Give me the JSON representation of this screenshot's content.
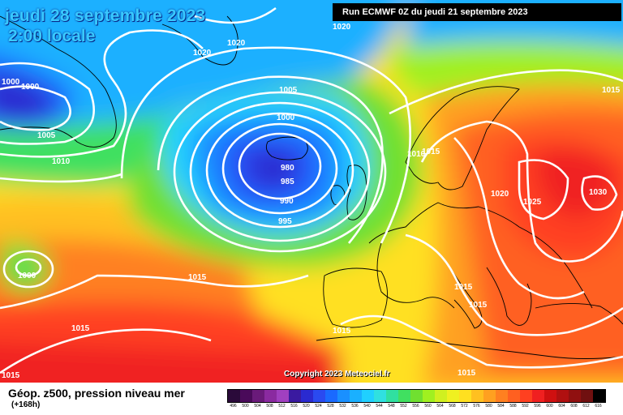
{
  "header": {
    "date_line": "jeudi 28 septembre 2023",
    "time_line": "2:00 locale",
    "run_info": "Run ECMWF 0Z du jeudi 21 septembre 2023"
  },
  "map": {
    "copyright": "Copyright 2023 Meteociel.fr",
    "pressure_labels": [
      "1020",
      "1020",
      "1020",
      "1000",
      "1000",
      "1005",
      "1010",
      "1005",
      "1000",
      "980",
      "985",
      "990",
      "995",
      "1010",
      "1015",
      "1015",
      "1020",
      "1025",
      "1030",
      "1000",
      "1015",
      "1015",
      "1015",
      "1015",
      "1015",
      "1015",
      "1015"
    ],
    "colors": {
      "isobar": "#ffffff",
      "coast": "#000000"
    }
  },
  "legend": {
    "title": "Géop. z500, pression niveau mer",
    "subtitle": "(+168h)",
    "scale_values": [
      "496",
      "500",
      "504",
      "508",
      "512",
      "516",
      "520",
      "524",
      "528",
      "532",
      "536",
      "540",
      "544",
      "548",
      "552",
      "556",
      "560",
      "564",
      "568",
      "572",
      "576",
      "580",
      "584",
      "588",
      "592",
      "596",
      "600",
      "604",
      "608",
      "612",
      "616"
    ],
    "scale_colors": [
      "#2a0a3a",
      "#4a0a5a",
      "#6a1a7a",
      "#8a2aa0",
      "#a040c0",
      "#3a1aa0",
      "#2a2ad0",
      "#2a4af0",
      "#1a6aff",
      "#1a90ff",
      "#1ab0ff",
      "#20d0ff",
      "#30e0e0",
      "#30e0a0",
      "#40e060",
      "#70e030",
      "#a0f020",
      "#d0f020",
      "#f0f020",
      "#ffe020",
      "#ffc020",
      "#ffa020",
      "#ff8020",
      "#ff6020",
      "#ff4020",
      "#f02020",
      "#d01010",
      "#b01010",
      "#901010",
      "#701010",
      "#000000"
    ]
  }
}
